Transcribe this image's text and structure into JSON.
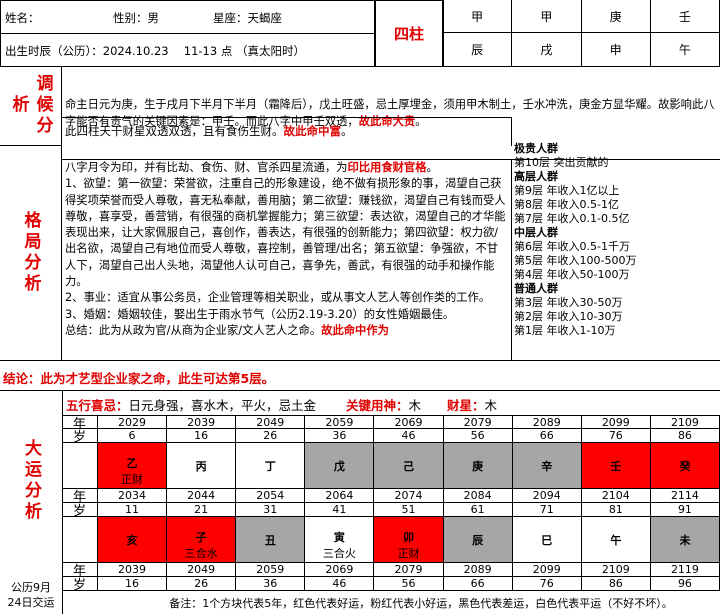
{
  "header": {
    "name_label": "姓名：",
    "gender": "性别：男",
    "zodiac": "星座：天蝎座",
    "birth": "出生时辰（公历）：2024.10.23　 11-13 点 （真太阳时）",
    "pillars_label": "四柱",
    "stems": [
      "甲",
      "甲",
      "庚",
      "壬"
    ],
    "branches": [
      "辰",
      "戌",
      "申",
      "午"
    ]
  },
  "tiaohou": {
    "label": "调候分析",
    "text1": "命主日元为庚，生于戌月下半月下半月（霜降后），戊土旺盛，忌土厚埋金，须用甲木制土，壬水冲洗，庚金方显华耀。故影响此八字能否有贵气的关键因素是：甲壬。而此八字中甲壬双透，",
    "text1_red": "故此命大贵",
    "text1_end": "。",
    "text2": "此四柱天干财星双透双透，且有食伤生财。",
    "text2_red": "故此命中富",
    "text2_end": "。"
  },
  "geju": {
    "label": "格局分析",
    "intro": "八字月令为印，并有比劫、食伤、财、官杀四星流通，为",
    "intro_red": "印比用食财官格",
    "intro_end": "。",
    "p1": "1、欲望：第一欲望：荣誉欲，注重自己的形象建设，绝不做有损形象的事，渴望自己获得奖项荣誉而受人尊敬，喜无私奉献，善用脑；第二欲望：赚钱欲，渴望自己有钱而受人尊敬，喜享受，善营销，有很强的商机掌握能力；第三欲望：表达欲，渴望自己的才华能表现出来，让大家佩服自己，喜创作，善表达，有很强的创新能力；第四欲望：权力欲/出名欲，渴望自己有地位而受人尊敬，喜控制，善管理/出名；第五欲望：争强欲，不甘人下，渴望自己出人头地，渴望他人认可自己，喜争先，善武，有很强的动手和操作能力。",
    "p2": "2、事业：适宜从事公务员，企业管理等相关职业，或从事文人艺人等创作类的工作。",
    "p3": "3、婚姻：婚姻较佳，娶出生于雨水节气（公历2.19-3.20）的女性婚姻最佳。",
    "summary": "总结：此为从政为官/从商为企业家/文人艺人之命。",
    "summary_red": "故此命中作为"
  },
  "levels": [
    {
      "h": "极贵人群"
    },
    {
      "t": "第10层  突出贡献的"
    },
    {
      "h": "高层人群"
    },
    {
      "t": "第9层  年收入1亿以上"
    },
    {
      "t": "第8层  年收入0.5-1亿"
    },
    {
      "t": "第7层  年收入0.1-0.5亿"
    },
    {
      "h": "中层人群"
    },
    {
      "t": "第6层  年收入0.5-1千万"
    },
    {
      "t": "第5层  年收入100-500万"
    },
    {
      "t": "第4层  年收入50-100万"
    },
    {
      "h": "普通人群"
    },
    {
      "t": "第3层  年收入30-50万"
    },
    {
      "t": "第2层  年收入10-30万"
    },
    {
      "t": "第1层  年收入1-10万"
    }
  ],
  "conclusion": "结论：此为才艺型企业家之命，此生可达第5层。",
  "dayun": {
    "label": "大运分析",
    "wuxing_red": "五行喜忌：",
    "wuxing": "日元身强，喜水木，平火，忌土金",
    "key_red": "关键用神：",
    "key": "木",
    "cai_red": "财星：",
    "cai": "木",
    "year_label": "年",
    "age_label": "岁",
    "row1": {
      "years": [
        "2029",
        "2039",
        "2049",
        "2059",
        "2069",
        "2079",
        "2089",
        "2099",
        "2109"
      ],
      "ages": [
        "6",
        "16",
        "26",
        "36",
        "46",
        "56",
        "66",
        "76",
        "86"
      ],
      "chars": [
        "乙",
        "丙",
        "丁",
        "戊",
        "己",
        "庚",
        "辛",
        "壬",
        "癸"
      ],
      "subs": [
        "正财",
        "",
        "",
        "",
        "",
        "",
        "",
        "",
        ""
      ],
      "colors": [
        "red",
        "white",
        "white",
        "gray",
        "gray",
        "gray",
        "gray",
        "red",
        "red"
      ]
    },
    "row2": {
      "years": [
        "2034",
        "2044",
        "2054",
        "2064",
        "2074",
        "2084",
        "2094",
        "2104",
        "2114"
      ],
      "ages": [
        "11",
        "21",
        "31",
        "41",
        "51",
        "61",
        "71",
        "81",
        "91"
      ],
      "chars": [
        "亥",
        "子",
        "丑",
        "寅",
        "卯",
        "辰",
        "巳",
        "午",
        "未"
      ],
      "subs": [
        "",
        "三合水",
        "",
        "三合火",
        "正财",
        "",
        "",
        "",
        ""
      ],
      "colors": [
        "red",
        "red",
        "gray",
        "white",
        "red",
        "gray",
        "white",
        "white",
        "gray"
      ]
    },
    "row3": {
      "years": [
        "2039",
        "2049",
        "2059",
        "2069",
        "2079",
        "2089",
        "2099",
        "2109",
        "2119"
      ],
      "ages": [
        "16",
        "26",
        "36",
        "46",
        "56",
        "66",
        "76",
        "86",
        "96"
      ]
    },
    "jiaoyun": "公历9月24日交运",
    "note": "备注：1个方块代表5年，红色代表好运，粉红代表小好运，黑色代表差运，白色代表平运（不好不坏）。"
  },
  "colors": {
    "good": "#ff0000",
    "bad": "#a6a6a6",
    "neutral": "#ffffff"
  }
}
